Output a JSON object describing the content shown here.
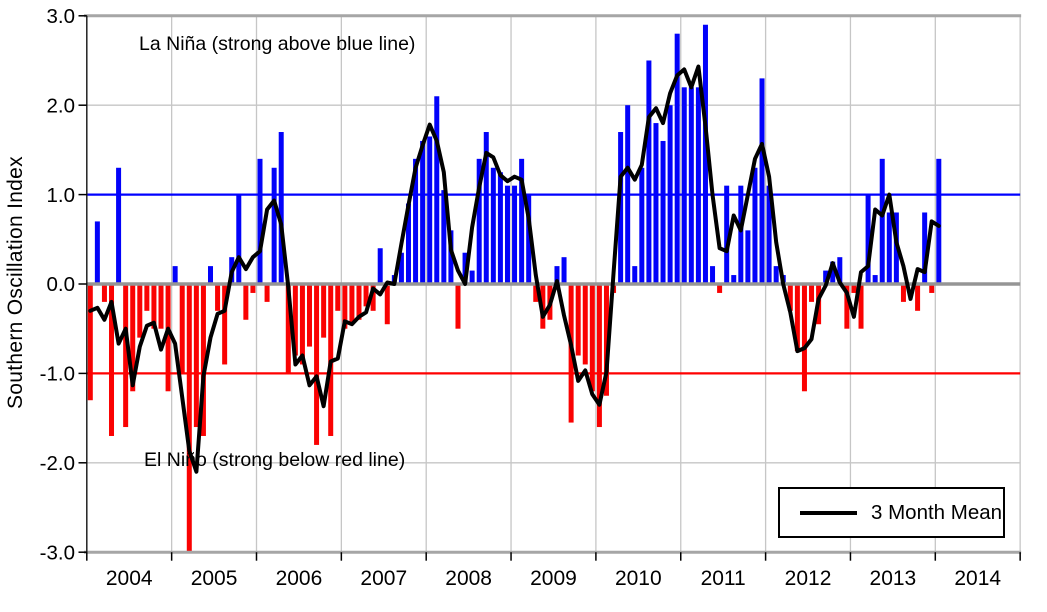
{
  "page": {
    "background": "#ffffff"
  },
  "chart_data": {
    "type": "bar",
    "title": "",
    "xlabel": "",
    "ylabel": "Southern Oscillation Index",
    "ylim": [
      -3.0,
      3.0
    ],
    "y_tick_values": [
      3,
      2,
      1,
      0,
      -1,
      -2,
      -3
    ],
    "y_tick_labels": [
      "3.0",
      "2.0",
      "1.0",
      "0.0",
      "-1.0",
      "-2.0",
      "-3.0"
    ],
    "x_tick_labels": [
      "2004",
      "2005",
      "2006",
      "2007",
      "2008",
      "2009",
      "2010",
      "2011",
      "2012",
      "2013",
      "2014"
    ],
    "x_axis_span_years": 11,
    "grid": "light gray vertical line at each January; horizontal at +2.0 and -2.0",
    "legend": {
      "label": "3 Month Mean",
      "position": "bottom-right"
    },
    "annotations": {
      "la_nina": "La Niña (strong above blue line)",
      "el_nino": "El Niño (strong below red line)"
    },
    "reference_lines": {
      "la_nina_threshold": 1.0,
      "el_nino_threshold": -1.0,
      "zero": 0.0
    },
    "mean_window_months": 3,
    "series_start_month": "2004-01",
    "monthly_values": [
      -1.3,
      0.7,
      -0.2,
      -1.7,
      1.3,
      -1.6,
      -1.2,
      -0.6,
      -0.3,
      -0.5,
      -0.5,
      -1.2,
      0.2,
      -1.0,
      -3.0,
      -1.6,
      -1.7,
      0.2,
      -0.3,
      -0.9,
      0.3,
      1.0,
      -0.4,
      -0.1,
      1.4,
      -0.2,
      1.3,
      1.7,
      -1.0,
      -0.8,
      -0.9,
      -0.7,
      -1.8,
      -0.6,
      -1.7,
      -0.3,
      -0.5,
      -0.45,
      -0.4,
      -0.25,
      -0.3,
      0.4,
      -0.45,
      0.1,
      0.35,
      0.9,
      1.4,
      1.6,
      1.65,
      2.1,
      1.05,
      0.6,
      -0.5,
      0.35,
      0.15,
      1.4,
      1.7,
      1.3,
      1.25,
      1.1,
      1.1,
      1.4,
      1.0,
      -0.2,
      -0.5,
      -0.4,
      0.2,
      0.3,
      -1.55,
      -0.8,
      -0.9,
      -1.2,
      -1.6,
      -1.25,
      -0.1,
      1.7,
      2.0,
      0.2,
      1.3,
      2.5,
      1.8,
      1.6,
      2.0,
      2.8,
      2.2,
      2.2,
      2.2,
      2.9,
      0.2,
      -0.1,
      1.1,
      0.1,
      1.1,
      0.6,
      1.3,
      2.3,
      1.1,
      0.2,
      0.1,
      -0.3,
      -0.75,
      -1.2,
      -0.2,
      -0.45,
      0.15,
      0.25,
      0.3,
      -0.5,
      -0.1,
      -0.5,
      1.0,
      0.1,
      1.4,
      0.8,
      0.8,
      -0.2,
      0.0,
      -0.3,
      0.8,
      -0.1,
      1.4
    ],
    "colors": {
      "positive_bar": "#0202fa",
      "negative_bar": "#fa0202",
      "la_nina_line": "#0000ff",
      "el_nino_line": "#ff0000",
      "mean_line": "#000000",
      "zero_line": "#959595",
      "plot_border": "#a6a6a6",
      "gridline": "#c6c6c6",
      "axis_text": "#000000"
    }
  }
}
